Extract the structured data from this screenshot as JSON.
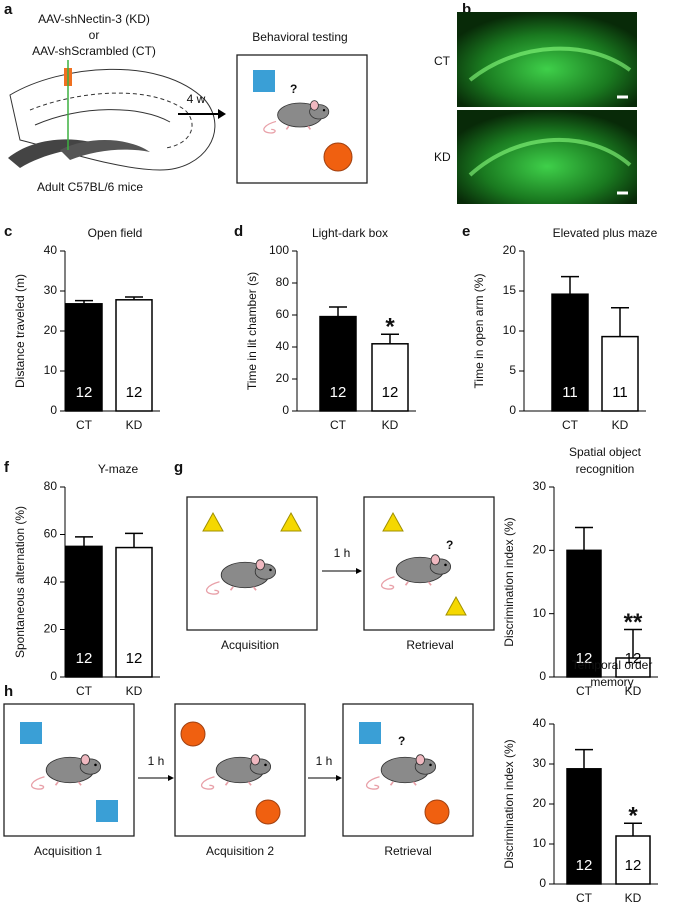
{
  "panels": [
    "a",
    "b",
    "c",
    "d",
    "e",
    "f",
    "g",
    "h"
  ],
  "diagrams": {
    "a": {
      "virus_kd": "AAV-shNectin-3 (KD)",
      "or": "or",
      "virus_ct": "AAV-shScrambled (CT)",
      "mice": "Adult C57BL/6 mice",
      "delay": "4 w",
      "testing": "Behavioral testing",
      "question": "?"
    },
    "b": {
      "top": "CT",
      "bottom": "KD"
    },
    "g": {
      "delay": "1 h",
      "acquisition": "Acquisition",
      "retrieval": "Retrieval",
      "question": "?"
    },
    "h": {
      "delay1": "1 h",
      "delay2": "1 h",
      "acquisition1": "Acquisition 1",
      "acquisition2": "Acquisition 2",
      "retrieval": "Retrieval",
      "question": "?"
    }
  },
  "chart_data": [
    {
      "type": "bar",
      "title": "Open field",
      "ylabel": "Distance traveled (m)",
      "categories": [
        "CT",
        "KD"
      ],
      "values": [
        26.8,
        27.8
      ],
      "errors": [
        0.8,
        0.7
      ],
      "n": [
        12,
        12
      ],
      "significance": [
        null,
        null
      ],
      "colors": [
        "#000000",
        "#ffffff"
      ],
      "ylim": [
        0,
        40
      ],
      "yticks": [
        0,
        10,
        20,
        30,
        40
      ]
    },
    {
      "type": "bar",
      "title": "Light-dark box",
      "ylabel": "Time in lit chamber (s)",
      "categories": [
        "CT",
        "KD"
      ],
      "values": [
        59,
        42
      ],
      "errors": [
        6,
        6
      ],
      "n": [
        12,
        12
      ],
      "significance": [
        null,
        "*"
      ],
      "colors": [
        "#000000",
        "#ffffff"
      ],
      "ylim": [
        0,
        100
      ],
      "yticks": [
        0,
        20,
        40,
        60,
        80,
        100
      ]
    },
    {
      "type": "bar",
      "title": "Elevated plus maze",
      "ylabel": "Time in open arm (%)",
      "categories": [
        "CT",
        "KD"
      ],
      "values": [
        14.6,
        9.3
      ],
      "errors": [
        2.2,
        3.6
      ],
      "n": [
        11,
        11
      ],
      "significance": [
        null,
        null
      ],
      "colors": [
        "#000000",
        "#ffffff"
      ],
      "ylim": [
        0,
        20
      ],
      "yticks": [
        0,
        5,
        10,
        15,
        20
      ]
    },
    {
      "type": "bar",
      "title": "Y-maze",
      "ylabel": "Spontaneous alternation (%)",
      "categories": [
        "CT",
        "KD"
      ],
      "values": [
        55,
        54.5
      ],
      "errors": [
        4,
        6
      ],
      "n": [
        12,
        12
      ],
      "significance": [
        null,
        null
      ],
      "colors": [
        "#000000",
        "#ffffff"
      ],
      "ylim": [
        0,
        80
      ],
      "yticks": [
        0,
        20,
        40,
        60,
        80
      ]
    },
    {
      "type": "bar",
      "title": [
        "Spatial object",
        "recognition"
      ],
      "ylabel": "Discrimination index (%)",
      "categories": [
        "CT",
        "KD"
      ],
      "values": [
        20,
        3
      ],
      "errors": [
        3.6,
        4.5
      ],
      "n": [
        12,
        12
      ],
      "significance": [
        null,
        "**"
      ],
      "colors": [
        "#000000",
        "#ffffff"
      ],
      "ylim": [
        0,
        30
      ],
      "yticks": [
        0,
        10,
        20,
        30
      ]
    },
    {
      "type": "bar",
      "title": [
        "Temporal order",
        "memory"
      ],
      "ylabel": "Discrimination index (%)",
      "categories": [
        "CT",
        "KD"
      ],
      "values": [
        28.8,
        12
      ],
      "errors": [
        4.8,
        3.2
      ],
      "n": [
        12,
        12
      ],
      "significance": [
        null,
        "*"
      ],
      "colors": [
        "#000000",
        "#ffffff"
      ],
      "ylim": [
        0,
        40
      ],
      "yticks": [
        0,
        10,
        20,
        30,
        40
      ]
    }
  ]
}
